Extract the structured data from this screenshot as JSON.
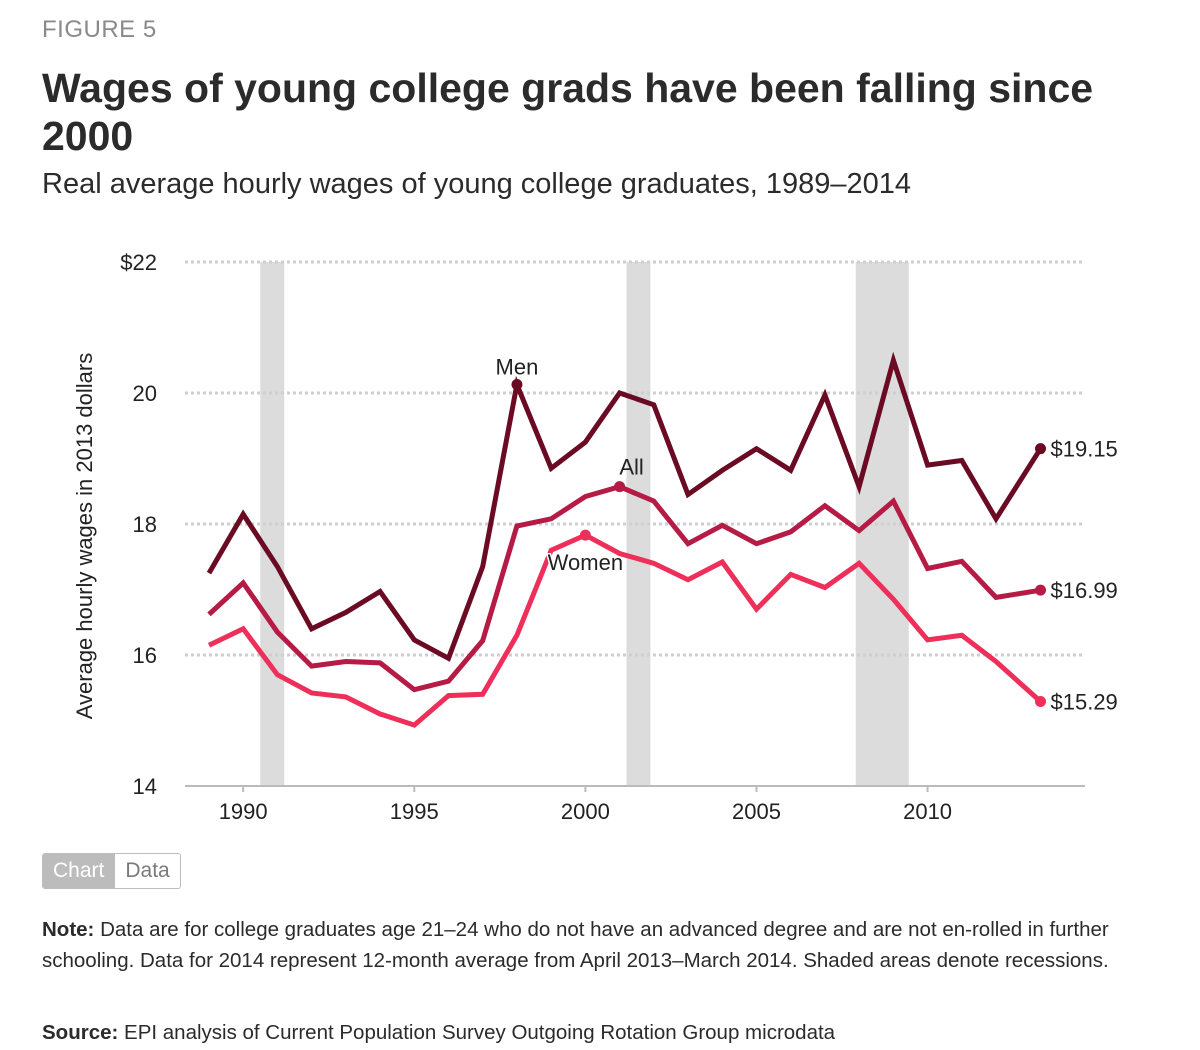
{
  "header": {
    "figure_label": "FIGURE 5",
    "title": "Wages of young college grads have been falling since 2000",
    "subtitle": "Real average hourly wages of young college graduates, 1989–2014"
  },
  "chart_data": {
    "type": "line",
    "ylabel": "Average hourly wages in 2013 dollars",
    "xlabel": "",
    "ylim": [
      14,
      22
    ],
    "yticks": [
      14,
      16,
      18,
      20,
      22
    ],
    "ytick_labels": [
      "14",
      "16",
      "18",
      "20",
      "$22"
    ],
    "xlim": [
      1988.3,
      2014.6
    ],
    "xticks": [
      1990,
      1995,
      2000,
      2005,
      2010
    ],
    "xtick_labels": [
      "1990",
      "1995",
      "2000",
      "2005",
      "2010"
    ],
    "grid": "horizontal dotted",
    "recessions": [
      [
        1990.5,
        1991.2
      ],
      [
        2001.2,
        2001.9
      ],
      [
        2007.9,
        2009.45
      ]
    ],
    "x": [
      1989,
      1990,
      1991,
      1992,
      1993,
      1994,
      1995,
      1996,
      1997,
      1998,
      1999,
      2000,
      2001,
      2002,
      2003,
      2004,
      2005,
      2006,
      2007,
      2008,
      2009,
      2010,
      2011,
      2012,
      2013.3
    ],
    "series": [
      {
        "name": "Men",
        "color": "#6b0b23",
        "values": [
          17.25,
          18.15,
          17.35,
          16.4,
          16.65,
          16.97,
          16.23,
          15.95,
          17.35,
          20.13,
          18.85,
          19.25,
          20.0,
          19.82,
          18.45,
          18.82,
          19.15,
          18.82,
          19.97,
          18.57,
          20.5,
          18.9,
          18.97,
          18.08,
          19.15
        ],
        "end_label": "$19.15",
        "marked_point": 1998
      },
      {
        "name": "All",
        "color": "#b51b44",
        "values": [
          16.62,
          17.1,
          16.35,
          15.83,
          15.9,
          15.88,
          15.47,
          15.6,
          16.22,
          17.97,
          18.08,
          18.42,
          18.57,
          18.35,
          17.7,
          17.98,
          17.7,
          17.88,
          18.28,
          17.9,
          18.35,
          17.32,
          17.43,
          16.88,
          16.99
        ],
        "end_label": "$16.99",
        "marked_point": 2001
      },
      {
        "name": "Women",
        "color": "#ee2f5a",
        "values": [
          16.15,
          16.4,
          15.7,
          15.42,
          15.36,
          15.1,
          14.93,
          15.38,
          15.4,
          16.3,
          17.6,
          17.83,
          17.55,
          17.4,
          17.15,
          17.42,
          16.7,
          17.23,
          17.03,
          17.4,
          16.85,
          16.23,
          16.3,
          15.9,
          15.29
        ],
        "end_label": "$15.29",
        "marked_point": 2000
      }
    ]
  },
  "controls": {
    "chart_tab": "Chart",
    "data_tab": "Data"
  },
  "footer": {
    "note_label": "Note:",
    "note_text": " Data are for college graduates age 21–24 who do not have an advanced degree and are not en-rolled in further schooling. Data for 2014 represent 12-month average from April 2013–March 2014. Shaded areas denote recessions.",
    "source_label": "Source:",
    "source_text": " EPI analysis of Current Population Survey Outgoing Rotation Group microdata"
  }
}
